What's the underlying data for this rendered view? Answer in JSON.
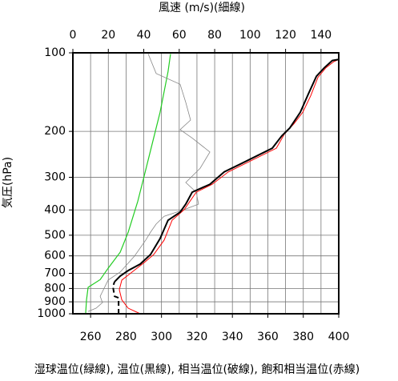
{
  "chart_data": {
    "type": "line",
    "x_label": "湿球温位(緑線), 温位(黒線), 相当温位(破線), 飽和相当温位(赤線)",
    "x2_label": "風速 (m/s)(細線)",
    "y_label": "気圧(hPa)",
    "xlim": [
      250,
      400
    ],
    "xticks": [
      260,
      280,
      300,
      320,
      340,
      360,
      380,
      400
    ],
    "x2lim": [
      0,
      150
    ],
    "x2ticks": [
      0,
      20,
      40,
      60,
      80,
      100,
      120,
      140
    ],
    "ylim": [
      1000,
      100
    ],
    "yticks": [
      100,
      200,
      300,
      400,
      500,
      600,
      700,
      800,
      900,
      1000
    ],
    "ylog": true,
    "grid": true,
    "series": [
      {
        "color": "#22cc22",
        "width": 1.2,
        "style": "solid",
        "x": [
          257.2,
          257.7,
          258.6,
          265.4,
          269.9,
          276.7,
          281.2,
          286.6,
          290.2,
          294.7,
          299.2,
          303.7,
          305.1
        ],
        "y": [
          1000,
          884,
          792,
          740,
          669,
          581,
          487,
          371,
          297,
          224,
          169,
          118,
          101
        ]
      },
      {
        "color": "#888888",
        "width": 0.8,
        "style": "solid",
        "axis": "x2",
        "x": [
          8.6,
          13.1,
          16.7,
          15.4,
          19.9,
          26.7,
          34.8,
          41.1,
          43.8,
          47.0,
          51.5,
          62.8,
          70.9,
          69.6,
          63.7,
          71.8,
          77.3,
          67.3,
          60.5,
          66.4,
          63.7,
          60.5,
          47.0,
          42.5
        ],
        "y": [
          980,
          952,
          906,
          857,
          743,
          692,
          601,
          522,
          487,
          453,
          423,
          399,
          380,
          342,
          314,
          277,
          240,
          212,
          197,
          181,
          155,
          132,
          120,
          101
        ]
      },
      {
        "color": "#ff0000",
        "width": 1,
        "style": "solid",
        "x": [
          288.0,
          281.2,
          277.6,
          276.2,
          277.6,
          283.4,
          290.2,
          295.6,
          301.5,
          306.0,
          312.8,
          319.6,
          328.6,
          337.7,
          364.8,
          369.3,
          374.7,
          379.7,
          384.2,
          388.3,
          392.8,
          397.3,
          400
        ],
        "y": [
          1000,
          952,
          884,
          809,
          743,
          692,
          637,
          593,
          522,
          438,
          399,
          342,
          319,
          286,
          232,
          205,
          187,
          169,
          146,
          124,
          114,
          108,
          106
        ]
      },
      {
        "color": "#000000",
        "width": 2,
        "style": "dashed",
        "x": [
          275.8,
          275.8,
          273.5,
          272.6,
          273.5
        ],
        "y": [
          1000,
          869,
          857,
          787,
          754
        ]
      },
      {
        "color": "#000000",
        "width": 2,
        "style": "solid",
        "x": [
          273.5,
          276.7,
          281.2,
          288.0,
          293.8,
          299.2,
          303.7,
          310.5,
          313.7,
          317.3,
          327.3,
          335.4,
          344.4,
          362.5,
          367.9,
          372.4,
          378.3,
          382.8,
          387.4,
          391.9,
          396.4,
          400
        ],
        "y": [
          754,
          717,
          683,
          645,
          593,
          515,
          438,
          408,
          380,
          342,
          319,
          286,
          267,
          232,
          208,
          194,
          169,
          144,
          123,
          114,
          107,
          106
        ]
      }
    ]
  }
}
